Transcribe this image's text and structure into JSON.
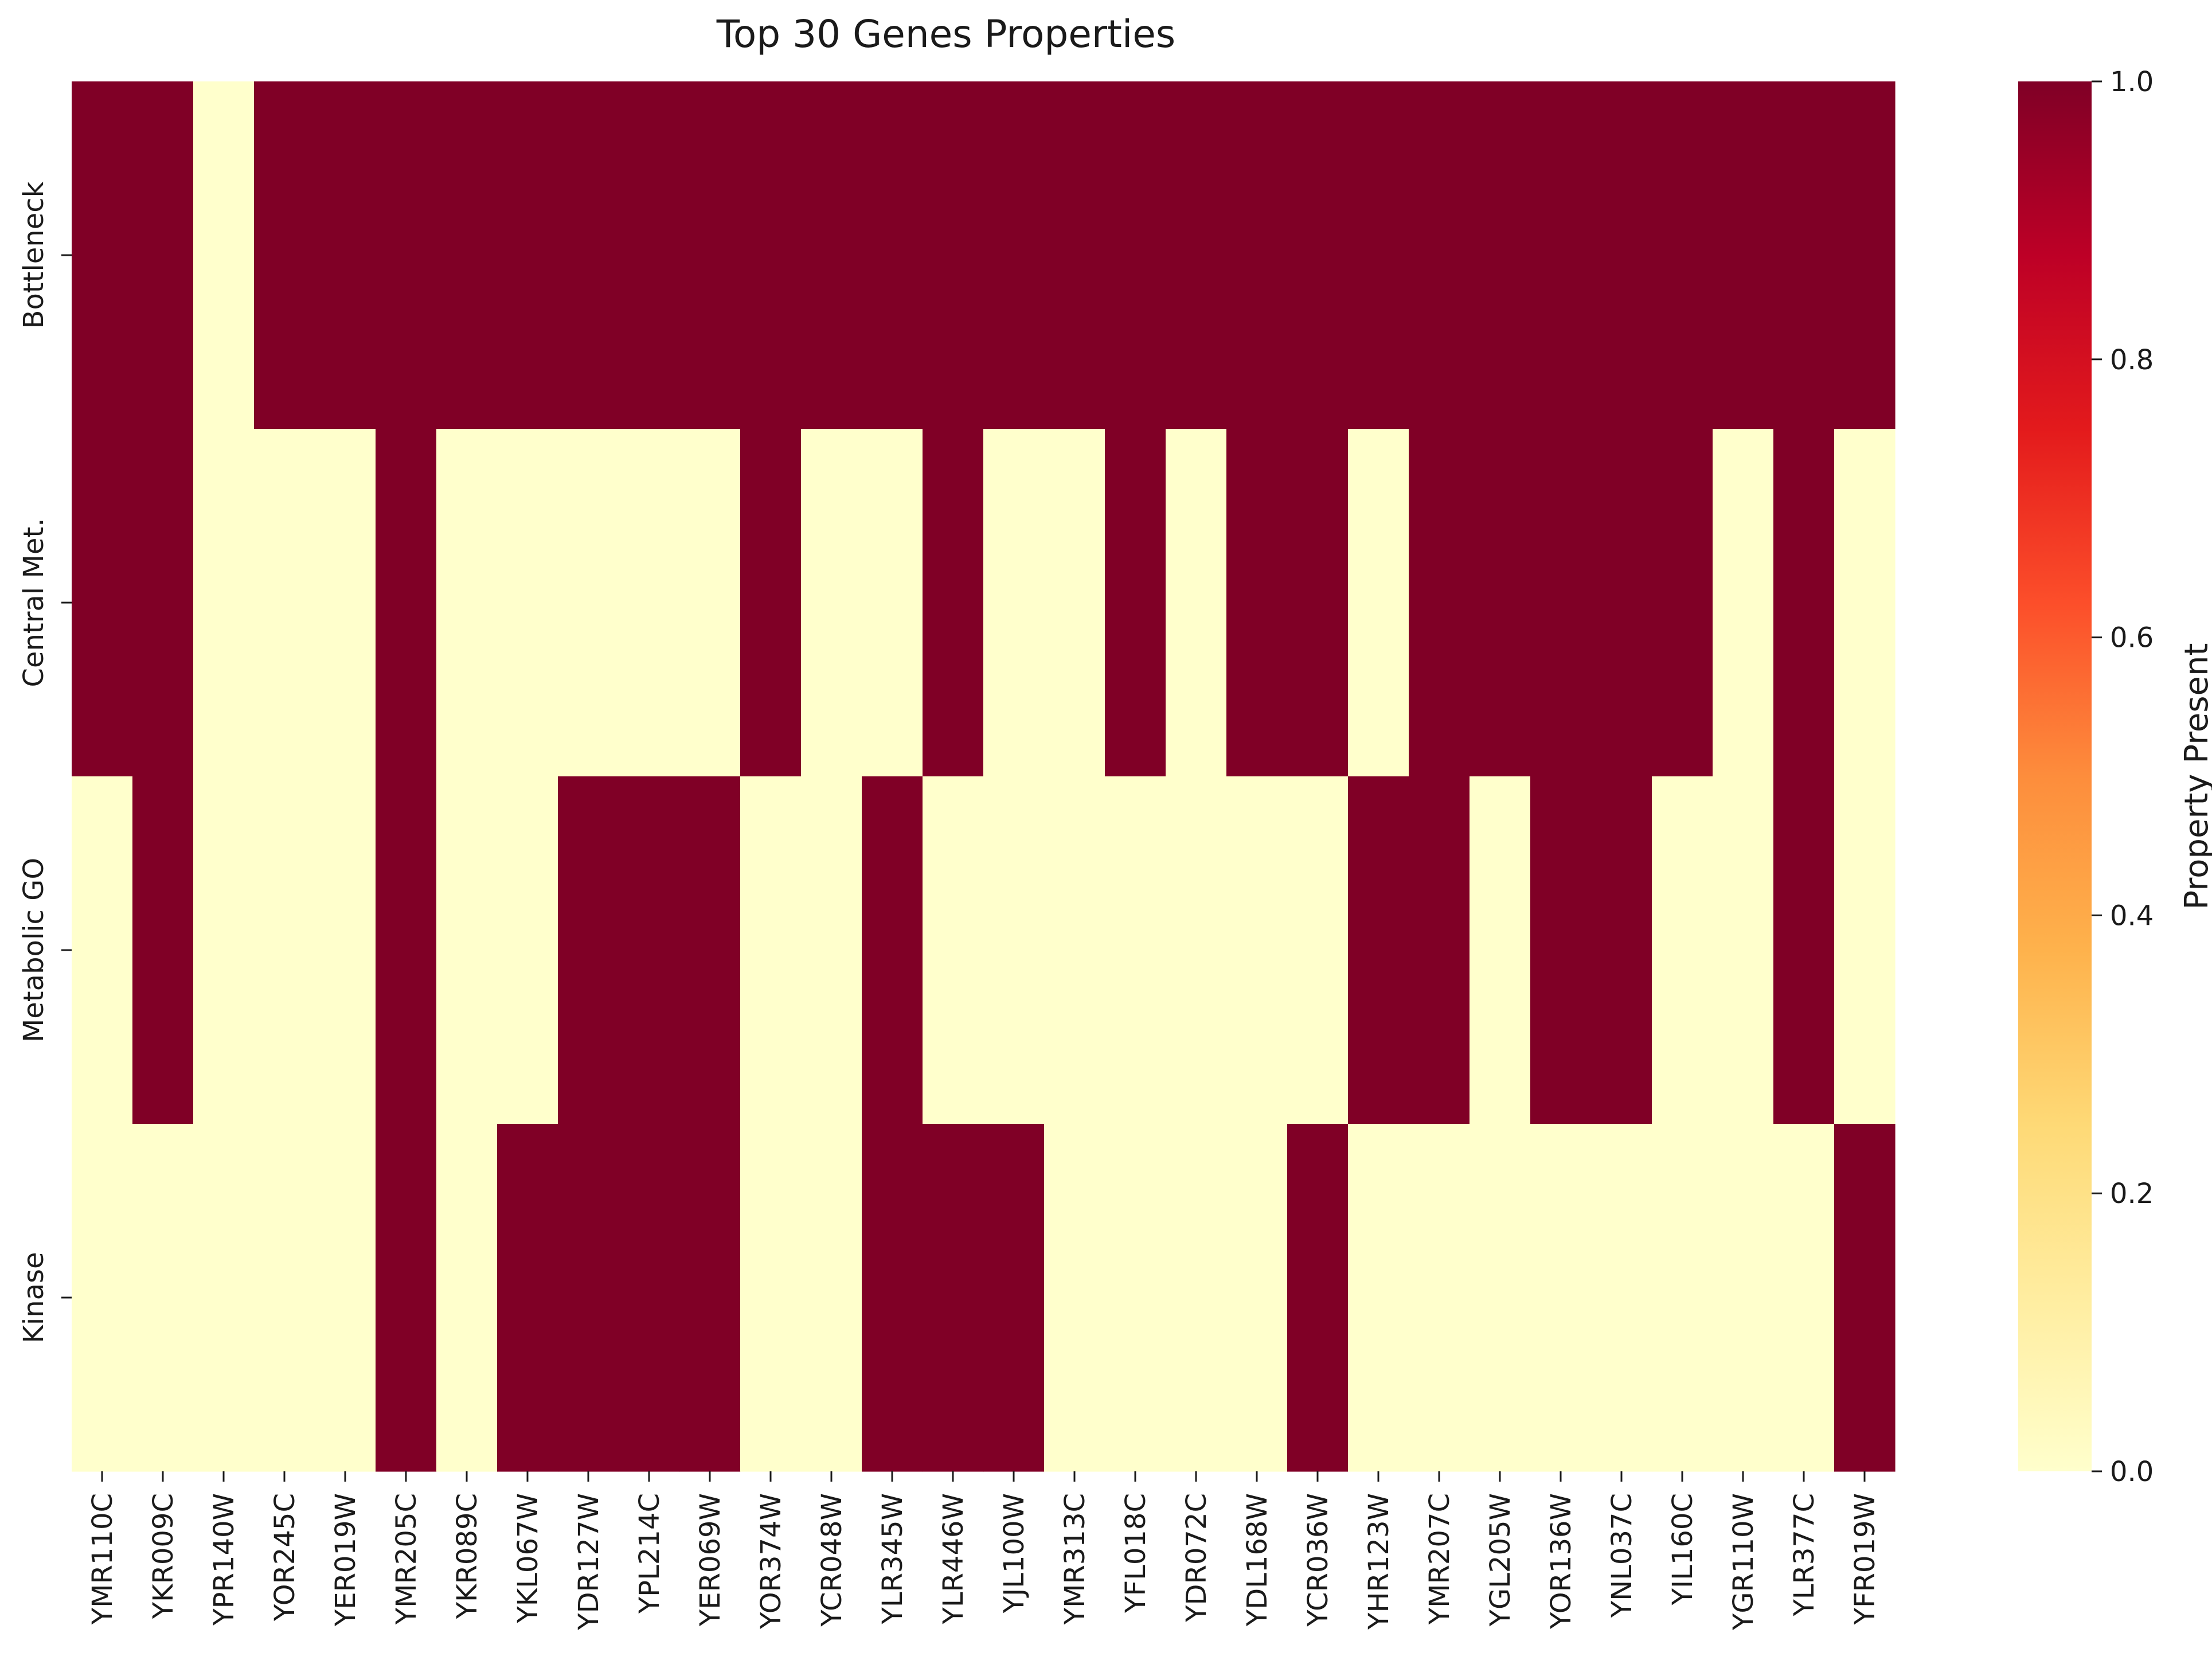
{
  "chart_data": {
    "type": "heatmap",
    "title": "Top 30 Genes Properties",
    "xlabel": "",
    "ylabel": "",
    "colorbar_label": "Property Present",
    "colormap": "YlOrRd",
    "colormap_stops": [
      "#ffffcc",
      "#ffeda0",
      "#fed976",
      "#feb24c",
      "#fd8d3c",
      "#fc4e2a",
      "#e31a1c",
      "#bd0026",
      "#800026"
    ],
    "value_range": [
      0.0,
      1.0
    ],
    "colorbar_ticks": [
      "0.0",
      "0.2",
      "0.4",
      "0.6",
      "0.8",
      "1.0"
    ],
    "colorbar_tick_values": [
      0.0,
      0.2,
      0.4,
      0.6,
      0.8,
      1.0
    ],
    "rows": [
      "Bottleneck",
      "Central Met.",
      "Metabolic GO",
      "Kinase"
    ],
    "columns": [
      "YMR110C",
      "YKR009C",
      "YPR140W",
      "YOR245C",
      "YER019W",
      "YMR205C",
      "YKR089C",
      "YKL067W",
      "YDR127W",
      "YPL214C",
      "YER069W",
      "YOR374W",
      "YCR048W",
      "YLR345W",
      "YLR446W",
      "YJL100W",
      "YMR313C",
      "YFL018C",
      "YDR072C",
      "YDL168W",
      "YCR036W",
      "YHR123W",
      "YMR207C",
      "YGL205W",
      "YOR136W",
      "YNL037C",
      "YIL160C",
      "YGR110W",
      "YLR377C",
      "YFR019W"
    ],
    "values": [
      [
        1,
        1,
        0,
        1,
        1,
        1,
        1,
        1,
        1,
        1,
        1,
        1,
        1,
        1,
        1,
        1,
        1,
        1,
        1,
        1,
        1,
        1,
        1,
        1,
        1,
        1,
        1,
        1,
        1,
        1
      ],
      [
        1,
        1,
        0,
        0,
        0,
        1,
        0,
        0,
        0,
        0,
        0,
        1,
        0,
        0,
        1,
        0,
        0,
        1,
        0,
        1,
        1,
        0,
        1,
        1,
        1,
        1,
        1,
        0,
        1,
        0
      ],
      [
        0,
        1,
        0,
        0,
        0,
        1,
        0,
        0,
        1,
        1,
        1,
        0,
        0,
        1,
        0,
        0,
        0,
        0,
        0,
        0,
        0,
        1,
        1,
        0,
        1,
        1,
        0,
        0,
        1,
        0
      ],
      [
        0,
        0,
        0,
        0,
        0,
        1,
        0,
        1,
        1,
        1,
        1,
        0,
        0,
        1,
        1,
        1,
        0,
        0,
        0,
        0,
        1,
        0,
        0,
        0,
        0,
        0,
        0,
        0,
        0,
        1
      ]
    ]
  }
}
